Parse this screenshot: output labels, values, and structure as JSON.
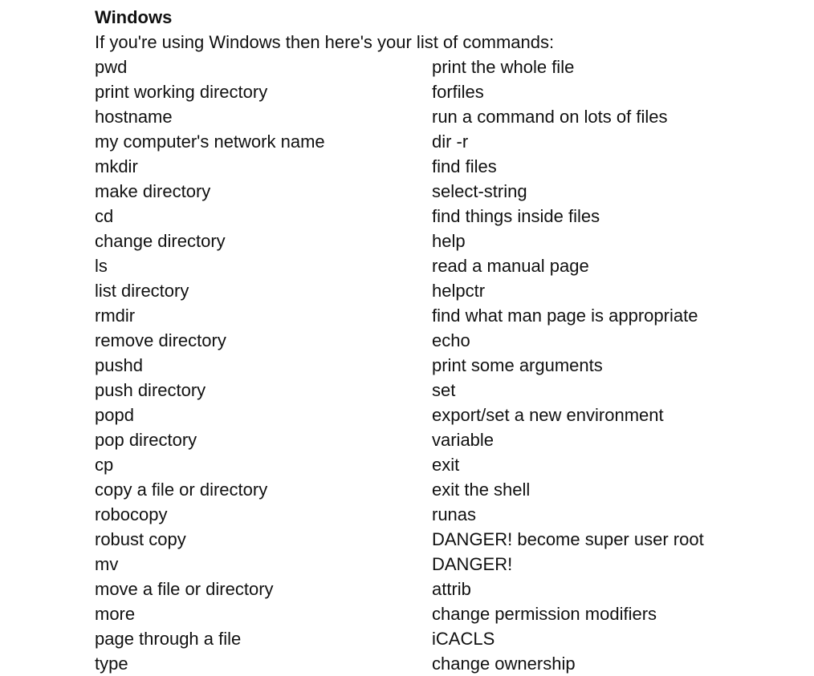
{
  "heading": "Windows",
  "intro": "If you're using Windows then here's your list of commands:",
  "left_column": [
    "pwd",
    "print working directory",
    "hostname",
    "my computer's network name",
    "mkdir",
    "make directory",
    "cd",
    "change directory",
    "ls",
    "list directory",
    "rmdir",
    "remove directory",
    "pushd",
    "push directory",
    "popd",
    "pop directory",
    "cp",
    "copy a file or directory",
    "robocopy",
    "robust copy",
    "mv",
    "move a file or directory",
    "more",
    "page through a file",
    "type"
  ],
  "right_column": [
    "print the whole file",
    "forfiles",
    "run a command on lots of files",
    "dir -r",
    "find files",
    "select-string",
    "find things inside files",
    "help",
    "read a manual page",
    "helpctr",
    "find what man page is appropriate",
    "echo",
    "print some arguments",
    "set",
    "export/set a new environment",
    "variable",
    "exit",
    "exit the shell",
    "runas",
    "DANGER! become super user root",
    "DANGER!",
    "attrib",
    "change permission modifiers",
    "iCACLS",
    "change ownership"
  ]
}
